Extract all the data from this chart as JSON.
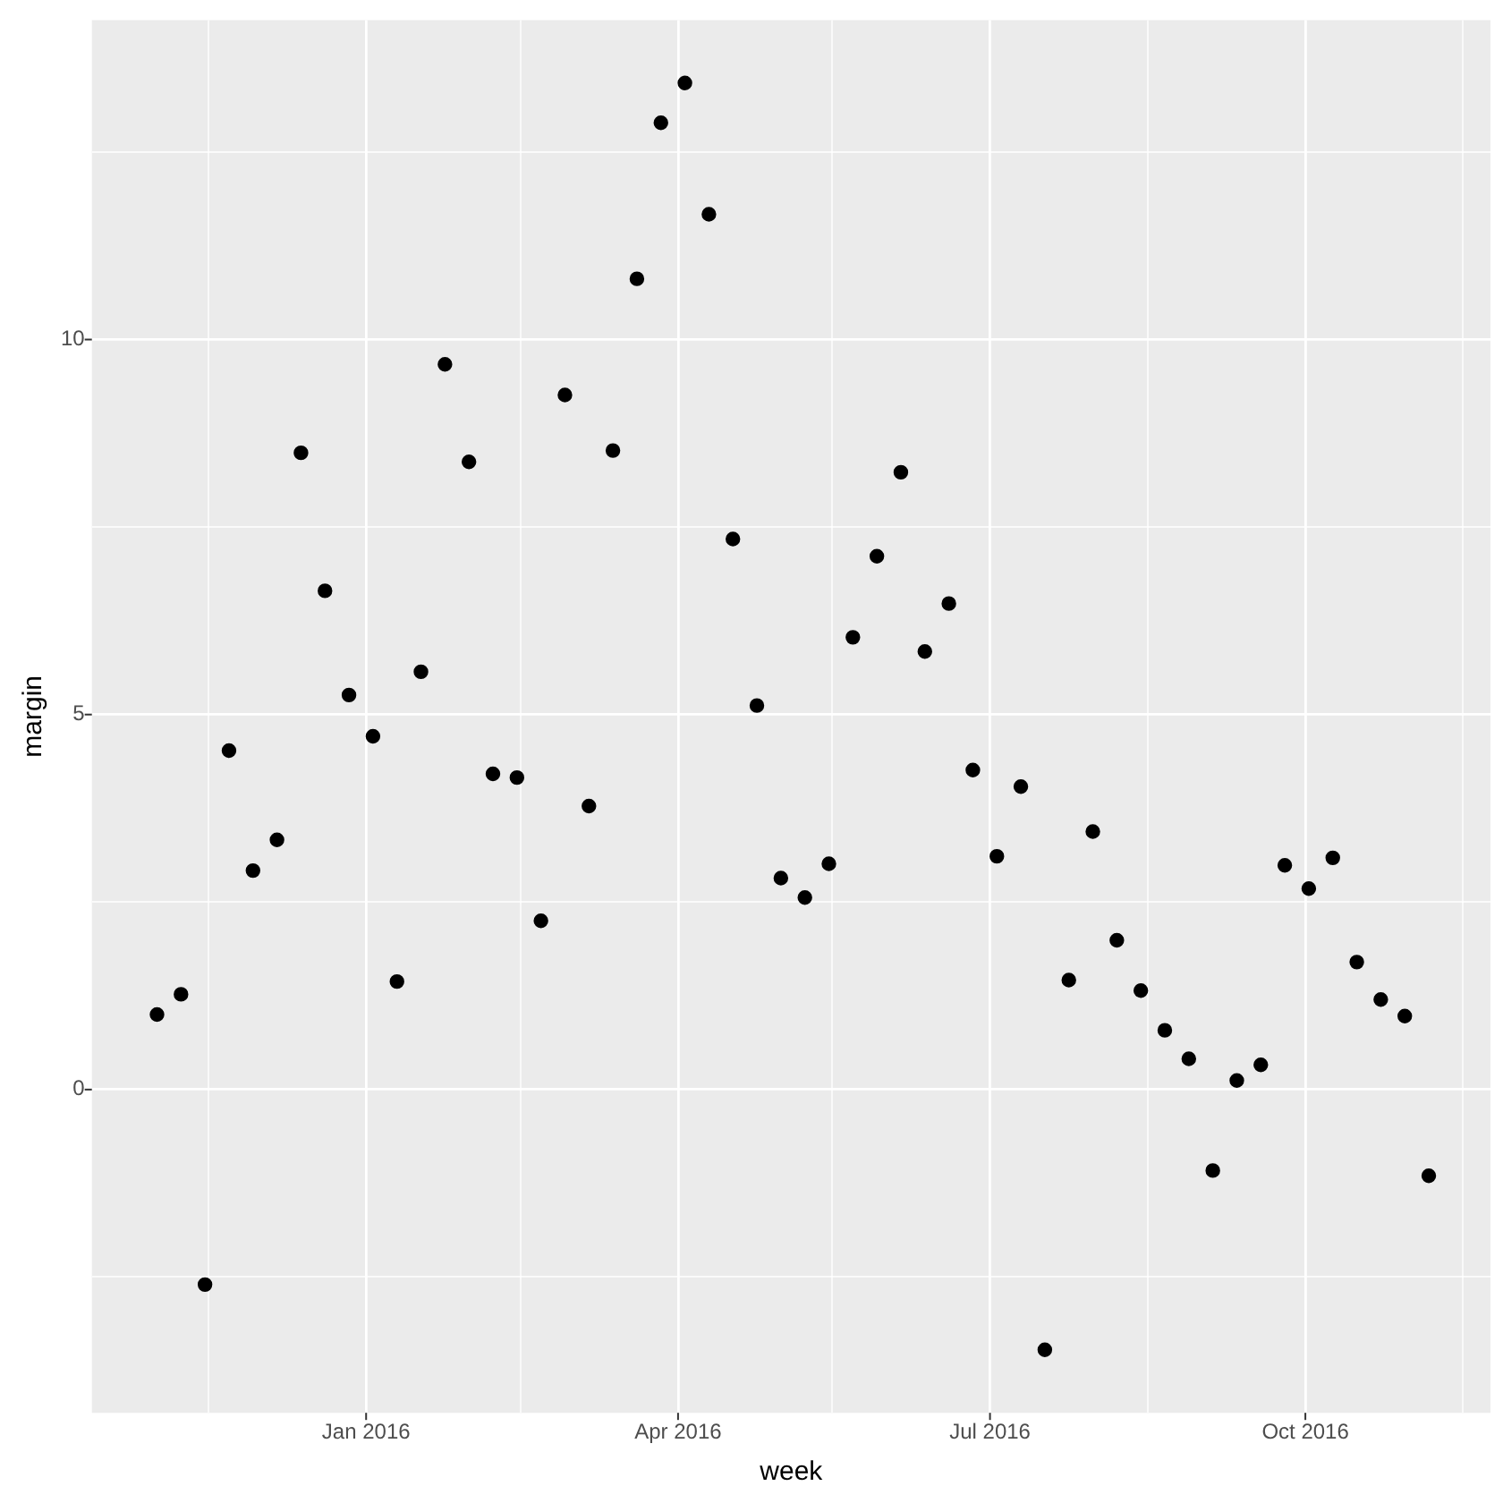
{
  "chart_data": {
    "type": "scatter",
    "xlabel": "week",
    "ylabel": "margin",
    "x": [
      "2015-11-01",
      "2015-11-08",
      "2015-11-15",
      "2015-11-22",
      "2015-11-29",
      "2015-12-06",
      "2015-12-13",
      "2015-12-20",
      "2015-12-27",
      "2016-01-03",
      "2016-01-10",
      "2016-01-17",
      "2016-01-24",
      "2016-01-31",
      "2016-02-07",
      "2016-02-14",
      "2016-02-21",
      "2016-02-28",
      "2016-03-06",
      "2016-03-13",
      "2016-03-20",
      "2016-03-27",
      "2016-04-03",
      "2016-04-10",
      "2016-04-17",
      "2016-04-24",
      "2016-05-01",
      "2016-05-08",
      "2016-05-15",
      "2016-05-22",
      "2016-05-29",
      "2016-06-05",
      "2016-06-12",
      "2016-06-19",
      "2016-06-26",
      "2016-07-03",
      "2016-07-10",
      "2016-07-17",
      "2016-07-24",
      "2016-07-31",
      "2016-08-07",
      "2016-08-14",
      "2016-08-21",
      "2016-08-28",
      "2016-09-04",
      "2016-09-11",
      "2016-09-18",
      "2016-09-25",
      "2016-10-02",
      "2016-10-09",
      "2016-10-16",
      "2016-10-23",
      "2016-10-30",
      "2016-11-06"
    ],
    "series": [
      {
        "color": "#000000",
        "values": [
          1.0,
          1.27,
          -2.6,
          4.52,
          2.92,
          3.33,
          8.49,
          6.65,
          5.26,
          4.71,
          1.44,
          5.57,
          9.67,
          8.37,
          4.21,
          4.16,
          2.25,
          9.26,
          3.78,
          8.52,
          10.81,
          12.89,
          13.42,
          11.67,
          7.34,
          5.12,
          2.82,
          2.56,
          3.01,
          6.03,
          7.11,
          8.23,
          5.84,
          6.48,
          4.26,
          3.11,
          4.04,
          -3.47,
          1.46,
          3.44,
          1.99,
          1.32,
          0.79,
          0.41,
          -1.08,
          0.12,
          0.33,
          2.99,
          2.68,
          3.09,
          1.7,
          1.2,
          0.98,
          -1.15
        ]
      }
    ],
    "xlim": [
      "2015-10-13",
      "2016-11-24"
    ],
    "xticks": [
      {
        "value": "2015-11-16",
        "label": null
      },
      {
        "value": "2016-01-01",
        "label": "Jan 2016"
      },
      {
        "value": "2016-02-15",
        "label": null
      },
      {
        "value": "2016-04-01",
        "label": "Apr 2016"
      },
      {
        "value": "2016-05-16",
        "label": null
      },
      {
        "value": "2016-07-01",
        "label": "Jul 2016"
      },
      {
        "value": "2016-08-16",
        "label": null
      },
      {
        "value": "2016-10-01",
        "label": "Oct 2016"
      },
      {
        "value": "2016-11-16",
        "label": null
      }
    ],
    "ylim": [
      -4.31,
      14.26
    ],
    "yticks": [
      {
        "value": -2.5,
        "label": null
      },
      0,
      {
        "value": 2.5,
        "label": null
      },
      5,
      {
        "value": 7.5,
        "label": null
      },
      10,
      {
        "value": 12.5,
        "label": null
      }
    ],
    "grid": true,
    "legend": false,
    "marker": "circle"
  }
}
